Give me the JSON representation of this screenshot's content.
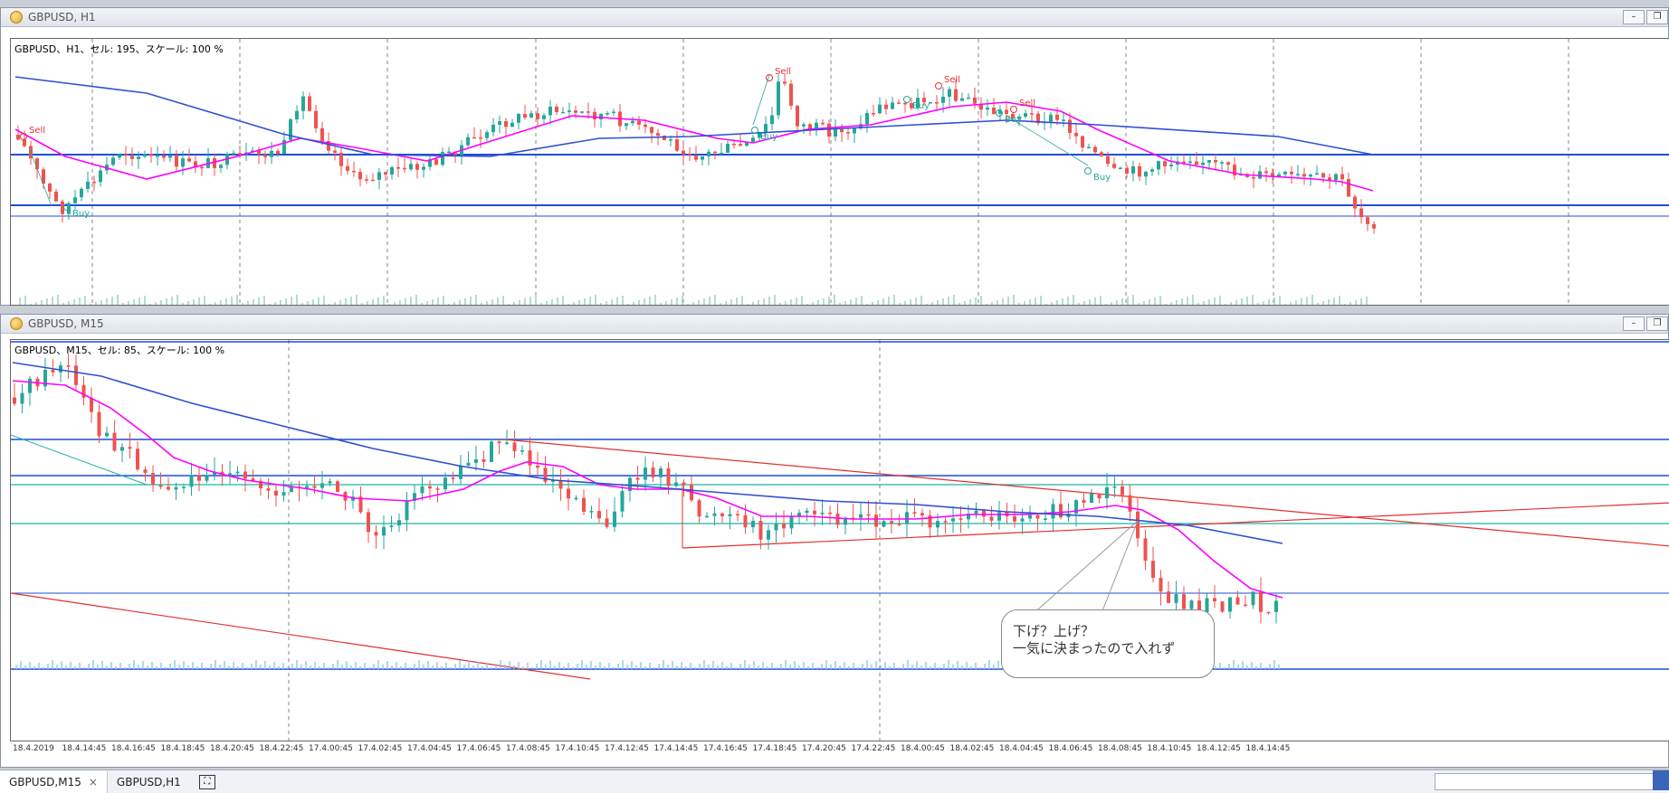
{
  "h1_window": {
    "title": "GBPUSD, H1",
    "info": "GBPUSD、H1、セル: 195、スケール: 100 %",
    "annotations": [
      "Sell",
      "Buy",
      "Buy",
      "Sell",
      "Buy",
      "Sell",
      "Buy",
      "Sell",
      "Buy"
    ]
  },
  "m15_window": {
    "title": "GBPUSD, M15",
    "info": "GBPUSD、M15、セル: 85、スケール: 100 %",
    "xaxis": [
      "18.4.2019",
      "18.4.14:45",
      "18.4.16:45",
      "18.4.18:45",
      "18.4.20:45",
      "18.4.22:45",
      "17.4.00:45",
      "17.4.02:45",
      "17.4.04:45",
      "17.4.06:45",
      "17.4.08:45",
      "17.4.10:45",
      "17.4.12:45",
      "17.4.14:45",
      "17.4.16:45",
      "17.4.18:45",
      "17.4.20:45",
      "17.4.22:45",
      "18.4.00:45",
      "18.4.02:45",
      "18.4.04:45",
      "18.4.06:45",
      "18.4.08:45",
      "18.4.10:45",
      "18.4.12:45",
      "18.4.14:45"
    ],
    "callout_line1": "下げ？上げ？",
    "callout_line2": "一気に決まったので入れず"
  },
  "tabs": [
    "GBPUSD,M15",
    "GBPUSD,H1"
  ],
  "tab_close": "×",
  "window_buttons": {
    "minimize": "–",
    "restore": "❐"
  },
  "colors": {
    "bull": "#26a69a",
    "bear": "#ef5350",
    "ma_fast": "#ff00ff",
    "ma_slow": "#3050d0",
    "hline_blue": "#1c4fd8",
    "hline_cyan": "#1fb3a8",
    "trend_red": "#e03030",
    "sell_text": "#e8303c",
    "buy_text": "#26a69a"
  }
}
